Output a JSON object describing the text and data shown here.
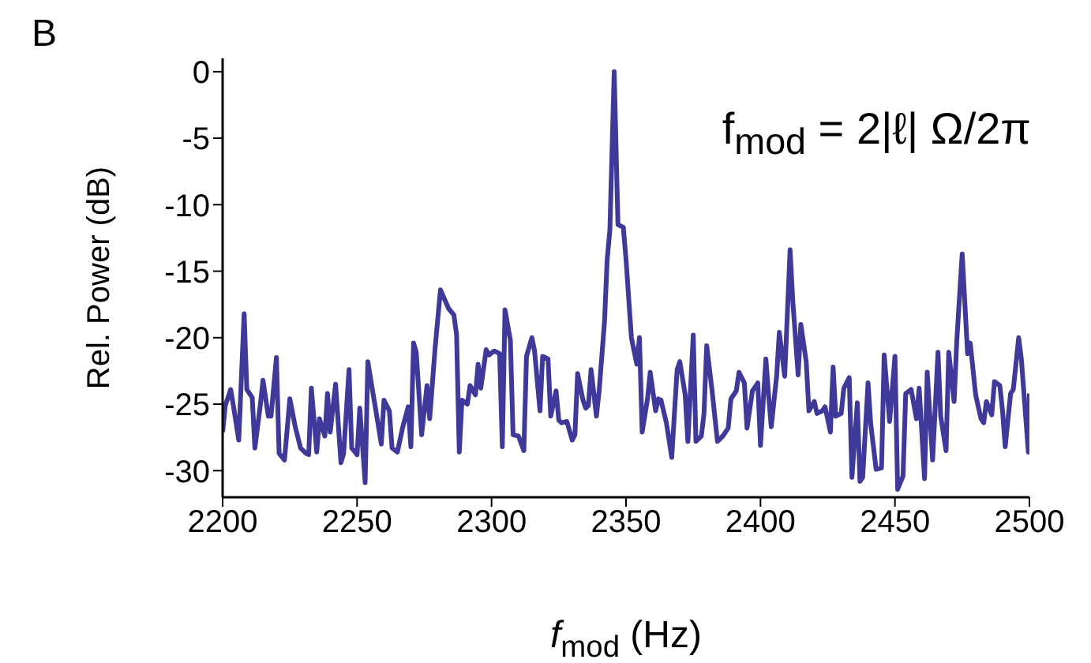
{
  "chart_data": {
    "type": "line",
    "title": "B",
    "xlabel": "f$_{mod}$ (Hz)",
    "ylabel": "Rel. Power (dB)",
    "annotations": [
      "f$_{mod}$ = 2|ℓ| Ω/2π"
    ],
    "xlim": [
      2200,
      2500
    ],
    "xticks": [
      2200,
      2250,
      2300,
      2350,
      2400,
      2450,
      2500
    ],
    "ylim": [
      -32,
      1
    ],
    "yticks": [
      -30,
      -25,
      -20,
      -15,
      -10,
      -5,
      0
    ],
    "marker": "none",
    "line_style": "solid",
    "series": [
      {
        "color": "#3f3a9a",
        "x": [
          2200,
          2201,
          2203,
          2204,
          2206,
          2208,
          2209,
          2211,
          2212,
          2214,
          2215,
          2217,
          2218,
          2220,
          2221,
          2223,
          2225,
          2227,
          2229,
          2231,
          2232,
          2233,
          2235,
          2236,
          2238,
          2239,
          2240,
          2242,
          2244,
          2245,
          2247,
          2248,
          2250,
          2251,
          2253,
          2254,
          2256,
          2257,
          2259,
          2260,
          2262,
          2263,
          2265,
          2267,
          2269,
          2270,
          2271,
          2272,
          2274,
          2276,
          2277,
          2279,
          2281,
          2284,
          2286,
          2287,
          2288,
          2289,
          2291,
          2292,
          2294,
          2295,
          2296,
          2298,
          2299,
          2301,
          2303,
          2304,
          2305,
          2307,
          2308,
          2310,
          2312,
          2313,
          2315,
          2316,
          2318,
          2319,
          2321,
          2322,
          2324,
          2325,
          2326,
          2328,
          2330,
          2331,
          2332,
          2334,
          2335,
          2336,
          2337,
          2339,
          2340,
          2342,
          2343,
          2344,
          2345.6,
          2347,
          2349,
          2350,
          2352,
          2354,
          2355,
          2356,
          2358,
          2359,
          2361,
          2362,
          2363,
          2365,
          2367,
          2369,
          2370,
          2372,
          2373,
          2375,
          2376,
          2378,
          2379,
          2380,
          2382,
          2384,
          2386,
          2388,
          2389,
          2391,
          2392,
          2394,
          2395,
          2397,
          2399,
          2400,
          2402,
          2403,
          2404,
          2406,
          2407,
          2409,
          2411,
          2412,
          2414,
          2415,
          2417,
          2418,
          2420,
          2421,
          2423,
          2424,
          2426,
          2427,
          2428,
          2430,
          2431,
          2433,
          2434,
          2436,
          2437,
          2438,
          2440,
          2441,
          2443,
          2445,
          2446,
          2448,
          2450,
          2451,
          2453,
          2454,
          2456,
          2458,
          2459,
          2461,
          2462,
          2464,
          2466,
          2467,
          2469,
          2470,
          2472,
          2473,
          2475,
          2477,
          2478,
          2480,
          2482,
          2483,
          2484,
          2486,
          2487,
          2489,
          2490,
          2491,
          2493,
          2494,
          2496,
          2497,
          2499.6,
          2500
        ],
        "values": [
          -27.1,
          -25.1,
          -23.9,
          -25.1,
          -27.7,
          -18.2,
          -23.9,
          -24.5,
          -28.3,
          -25.1,
          -23.2,
          -25.9,
          -25.9,
          -21.5,
          -28.7,
          -29.2,
          -24.6,
          -26.7,
          -28.3,
          -28.7,
          -28.8,
          -23.8,
          -28.6,
          -26.1,
          -27.4,
          -24.2,
          -27.1,
          -23.5,
          -29.4,
          -28.7,
          -22.4,
          -28.3,
          -28.8,
          -25.3,
          -30.9,
          -21.8,
          -24.3,
          -25.5,
          -28.0,
          -24.7,
          -25.5,
          -28.3,
          -28.6,
          -26.7,
          -25.2,
          -28.2,
          -20.4,
          -21.1,
          -27.3,
          -23.6,
          -26.1,
          -20.8,
          -16.4,
          -17.8,
          -18.3,
          -19.8,
          -28.6,
          -24.7,
          -25.0,
          -23.6,
          -24.3,
          -22.0,
          -23.8,
          -20.9,
          -21.3,
          -21.0,
          -21.2,
          -28.2,
          -17.9,
          -20.2,
          -27.3,
          -27.4,
          -28.5,
          -21.4,
          -20.0,
          -21.0,
          -25.5,
          -21.4,
          -21.6,
          -25.9,
          -24.0,
          -26.2,
          -26.4,
          -26.3,
          -27.7,
          -27.3,
          -22.7,
          -24.7,
          -25.3,
          -25.1,
          -22.4,
          -25.9,
          -24.0,
          -18.8,
          -14.1,
          -11.9,
          0,
          -11.5,
          -11.7,
          -14.1,
          -20.0,
          -22.0,
          -20.0,
          -27.1,
          -24.6,
          -22.6,
          -25.5,
          -24.6,
          -24.7,
          -26.4,
          -29.0,
          -22.4,
          -21.8,
          -24.3,
          -27.8,
          -19.8,
          -27.8,
          -27.4,
          -25.7,
          -20.6,
          -24.0,
          -27.8,
          -27.4,
          -26.8,
          -24.6,
          -24.0,
          -22.6,
          -23.4,
          -26.8,
          -24.0,
          -23.4,
          -28.1,
          -21.6,
          -24.3,
          -26.7,
          -22.9,
          -19.6,
          -22.9,
          -13.4,
          -17.2,
          -22.8,
          -19.0,
          -21.8,
          -25.5,
          -24.8,
          -25.7,
          -25.5,
          -25.2,
          -27.1,
          -22.2,
          -25.9,
          -25.7,
          -23.8,
          -23.0,
          -30.5,
          -24.9,
          -30.8,
          -30.5,
          -23.4,
          -26.5,
          -29.9,
          -29.8,
          -21.3,
          -26.3,
          -21.4,
          -31.4,
          -30.4,
          -24.2,
          -23.9,
          -26.1,
          -23.8,
          -30.6,
          -22.6,
          -29.2,
          -21.1,
          -25.9,
          -28.5,
          -21.1,
          -24.8,
          -20.2,
          -13.7,
          -21.2,
          -20.4,
          -24.3,
          -26.1,
          -26.4,
          -24.8,
          -25.8,
          -23.3,
          -23.6,
          -25.5,
          -28.2,
          -24.2,
          -23.9,
          -20.0,
          -21.6,
          -28.6,
          -24.2
        ]
      }
    ]
  }
}
